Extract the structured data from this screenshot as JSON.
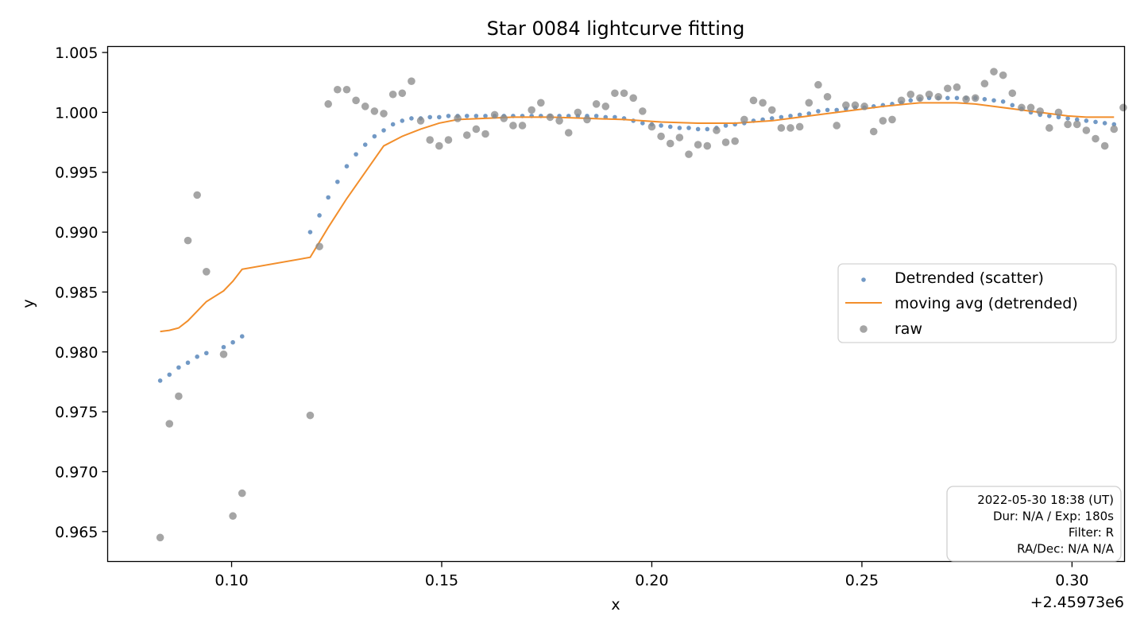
{
  "chart_data": {
    "type": "scatter",
    "title": "Star 0084 lightcurve fitting",
    "xlabel": "x",
    "ylabel": "y",
    "x_offset_label": "+2.45973e6",
    "xlim": [
      0.0705,
      0.3125
    ],
    "ylim": [
      0.9625,
      1.0055
    ],
    "x_ticks": [
      {
        "value": 0.1,
        "label": "0.10"
      },
      {
        "value": 0.15,
        "label": "0.15"
      },
      {
        "value": 0.2,
        "label": "0.20"
      },
      {
        "value": 0.25,
        "label": "0.25"
      },
      {
        "value": 0.3,
        "label": "0.30"
      }
    ],
    "y_ticks": [
      {
        "value": 0.965,
        "label": "0.965"
      },
      {
        "value": 0.97,
        "label": "0.970"
      },
      {
        "value": 0.975,
        "label": "0.975"
      },
      {
        "value": 0.98,
        "label": "0.980"
      },
      {
        "value": 0.985,
        "label": "0.985"
      },
      {
        "value": 0.99,
        "label": "0.990"
      },
      {
        "value": 0.995,
        "label": "0.995"
      },
      {
        "value": 1.0,
        "label": "1.000"
      },
      {
        "value": 1.005,
        "label": "1.005"
      }
    ],
    "grid": false,
    "legend_position": "center-right",
    "series": [
      {
        "name": "Detrended (scatter)",
        "kind": "scatter",
        "color": "#4f7fb6",
        "points": [
          [
            0.083,
            0.9776
          ],
          [
            0.0852,
            0.9781
          ],
          [
            0.0874,
            0.9787
          ],
          [
            0.0896,
            0.9791
          ],
          [
            0.0918,
            0.9796
          ],
          [
            0.094,
            0.9799
          ],
          [
            0.0981,
            0.9804
          ],
          [
            0.1003,
            0.9808
          ],
          [
            0.1025,
            0.9813
          ],
          [
            0.1187,
            0.99
          ],
          [
            0.1209,
            0.9914
          ],
          [
            0.123,
            0.9929
          ],
          [
            0.1252,
            0.9942
          ],
          [
            0.1274,
            0.9955
          ],
          [
            0.1296,
            0.9965
          ],
          [
            0.1318,
            0.9973
          ],
          [
            0.134,
            0.998
          ],
          [
            0.1362,
            0.9985
          ],
          [
            0.1384,
            0.999
          ],
          [
            0.1406,
            0.9993
          ],
          [
            0.1428,
            0.9995
          ],
          [
            0.145,
            0.9995
          ],
          [
            0.1472,
            0.9996
          ],
          [
            0.1494,
            0.9996
          ],
          [
            0.1516,
            0.9997
          ],
          [
            0.1538,
            0.9997
          ],
          [
            0.156,
            0.9997
          ],
          [
            0.1582,
            0.9997
          ],
          [
            0.1604,
            0.9997
          ],
          [
            0.1626,
            0.9997
          ],
          [
            0.1648,
            0.9997
          ],
          [
            0.167,
            0.9997
          ],
          [
            0.1692,
            0.9997
          ],
          [
            0.1714,
            0.9997
          ],
          [
            0.1736,
            0.9997
          ],
          [
            0.1758,
            0.9997
          ],
          [
            0.178,
            0.9997
          ],
          [
            0.1802,
            0.9997
          ],
          [
            0.1824,
            0.9997
          ],
          [
            0.1846,
            0.9997
          ],
          [
            0.1868,
            0.9997
          ],
          [
            0.189,
            0.9996
          ],
          [
            0.1912,
            0.9996
          ],
          [
            0.1934,
            0.9995
          ],
          [
            0.1956,
            0.9993
          ],
          [
            0.1978,
            0.9991
          ],
          [
            0.2,
            0.999
          ],
          [
            0.2022,
            0.9989
          ],
          [
            0.2044,
            0.9988
          ],
          [
            0.2066,
            0.9987
          ],
          [
            0.2088,
            0.9987
          ],
          [
            0.211,
            0.9986
          ],
          [
            0.2132,
            0.9986
          ],
          [
            0.2154,
            0.9987
          ],
          [
            0.2176,
            0.9989
          ],
          [
            0.2198,
            0.999
          ],
          [
            0.222,
            0.9991
          ],
          [
            0.2242,
            0.9993
          ],
          [
            0.2264,
            0.9994
          ],
          [
            0.2286,
            0.9995
          ],
          [
            0.2308,
            0.9996
          ],
          [
            0.233,
            0.9997
          ],
          [
            0.2352,
            0.9998
          ],
          [
            0.2374,
            0.9999
          ],
          [
            0.2396,
            1.0001
          ],
          [
            0.2418,
            1.0002
          ],
          [
            0.244,
            1.0002
          ],
          [
            0.2462,
            1.0003
          ],
          [
            0.2484,
            1.0004
          ],
          [
            0.2506,
            1.0004
          ],
          [
            0.2528,
            1.0005
          ],
          [
            0.255,
            1.0006
          ],
          [
            0.2572,
            1.0007
          ],
          [
            0.2594,
            1.0008
          ],
          [
            0.2616,
            1.001
          ],
          [
            0.2638,
            1.0011
          ],
          [
            0.266,
            1.0012
          ],
          [
            0.2682,
            1.0012
          ],
          [
            0.2704,
            1.0012
          ],
          [
            0.2726,
            1.0012
          ],
          [
            0.2748,
            1.0012
          ],
          [
            0.277,
            1.0012
          ],
          [
            0.2792,
            1.0011
          ],
          [
            0.2814,
            1.001
          ],
          [
            0.2836,
            1.0009
          ],
          [
            0.2858,
            1.0006
          ],
          [
            0.288,
            1.0003
          ],
          [
            0.2902,
            1.0
          ],
          [
            0.2924,
            0.9998
          ],
          [
            0.2946,
            0.9997
          ],
          [
            0.2968,
            0.9996
          ],
          [
            0.299,
            0.9995
          ],
          [
            0.3012,
            0.9994
          ],
          [
            0.3034,
            0.9993
          ],
          [
            0.3056,
            0.9992
          ],
          [
            0.3078,
            0.9991
          ],
          [
            0.31,
            0.999
          ]
        ]
      },
      {
        "name": "moving avg (detrended)",
        "kind": "line",
        "color": "#f28e2b",
        "points": [
          [
            0.083,
            0.9817
          ],
          [
            0.0852,
            0.9818
          ],
          [
            0.0874,
            0.982
          ],
          [
            0.0896,
            0.9826
          ],
          [
            0.0918,
            0.9834
          ],
          [
            0.094,
            0.9842
          ],
          [
            0.0981,
            0.9851
          ],
          [
            0.1003,
            0.9859
          ],
          [
            0.1025,
            0.9869
          ],
          [
            0.1187,
            0.9879
          ],
          [
            0.123,
            0.9904
          ],
          [
            0.1274,
            0.9928
          ],
          [
            0.1318,
            0.995
          ],
          [
            0.1362,
            0.9972
          ],
          [
            0.1406,
            0.998
          ],
          [
            0.145,
            0.9986
          ],
          [
            0.1494,
            0.9991
          ],
          [
            0.1538,
            0.9994
          ],
          [
            0.1604,
            0.9995
          ],
          [
            0.167,
            0.9996
          ],
          [
            0.1758,
            0.9996
          ],
          [
            0.1846,
            0.9995
          ],
          [
            0.1934,
            0.9994
          ],
          [
            0.2022,
            0.9992
          ],
          [
            0.211,
            0.9991
          ],
          [
            0.2198,
            0.9991
          ],
          [
            0.2286,
            0.9993
          ],
          [
            0.2374,
            0.9997
          ],
          [
            0.2462,
            1.0001
          ],
          [
            0.255,
            1.0005
          ],
          [
            0.2638,
            1.0008
          ],
          [
            0.2682,
            1.0008
          ],
          [
            0.2726,
            1.0008
          ],
          [
            0.277,
            1.0007
          ],
          [
            0.2814,
            1.0005
          ],
          [
            0.2858,
            1.0003
          ],
          [
            0.2902,
            1.0001
          ],
          [
            0.2946,
            0.9999
          ],
          [
            0.299,
            0.9997
          ],
          [
            0.3034,
            0.9996
          ],
          [
            0.31,
            0.9996
          ]
        ]
      },
      {
        "name": "raw",
        "kind": "scatter",
        "color": "#8c8c8c",
        "points": [
          [
            0.083,
            0.9645
          ],
          [
            0.0852,
            0.974
          ],
          [
            0.0874,
            0.9763
          ],
          [
            0.0896,
            0.9893
          ],
          [
            0.0918,
            0.9931
          ],
          [
            0.094,
            0.9867
          ],
          [
            0.0981,
            0.9798
          ],
          [
            0.1003,
            0.9663
          ],
          [
            0.1025,
            0.9682
          ],
          [
            0.1187,
            0.9747
          ],
          [
            0.1209,
            0.9888
          ],
          [
            0.123,
            1.0007
          ],
          [
            0.1252,
            1.0019
          ],
          [
            0.1274,
            1.0019
          ],
          [
            0.1296,
            1.001
          ],
          [
            0.1318,
            1.0005
          ],
          [
            0.134,
            1.0001
          ],
          [
            0.1362,
            0.9999
          ],
          [
            0.1384,
            1.0015
          ],
          [
            0.1406,
            1.0016
          ],
          [
            0.1428,
            1.0026
          ],
          [
            0.145,
            0.9993
          ],
          [
            0.1472,
            0.9977
          ],
          [
            0.1494,
            0.9972
          ],
          [
            0.1516,
            0.9977
          ],
          [
            0.1538,
            0.9995
          ],
          [
            0.156,
            0.9981
          ],
          [
            0.1582,
            0.9986
          ],
          [
            0.1604,
            0.9982
          ],
          [
            0.1626,
            0.9998
          ],
          [
            0.1648,
            0.9995
          ],
          [
            0.167,
            0.9989
          ],
          [
            0.1692,
            0.9989
          ],
          [
            0.1714,
            1.0002
          ],
          [
            0.1736,
            1.0008
          ],
          [
            0.1758,
            0.9996
          ],
          [
            0.178,
            0.9993
          ],
          [
            0.1802,
            0.9983
          ],
          [
            0.1824,
            1.0
          ],
          [
            0.1846,
            0.9994
          ],
          [
            0.1868,
            1.0007
          ],
          [
            0.189,
            1.0005
          ],
          [
            0.1912,
            1.0016
          ],
          [
            0.1934,
            1.0016
          ],
          [
            0.1956,
            1.0012
          ],
          [
            0.1978,
            1.0001
          ],
          [
            0.2,
            0.9988
          ],
          [
            0.2022,
            0.998
          ],
          [
            0.2044,
            0.9974
          ],
          [
            0.2066,
            0.9979
          ],
          [
            0.2088,
            0.9965
          ],
          [
            0.211,
            0.9973
          ],
          [
            0.2132,
            0.9972
          ],
          [
            0.2154,
            0.9985
          ],
          [
            0.2176,
            0.9975
          ],
          [
            0.2198,
            0.9976
          ],
          [
            0.222,
            0.9994
          ],
          [
            0.2242,
            1.001
          ],
          [
            0.2264,
            1.0008
          ],
          [
            0.2286,
            1.0002
          ],
          [
            0.2308,
            0.9987
          ],
          [
            0.233,
            0.9987
          ],
          [
            0.2352,
            0.9988
          ],
          [
            0.2374,
            1.0008
          ],
          [
            0.2396,
            1.0023
          ],
          [
            0.2418,
            1.0013
          ],
          [
            0.244,
            0.9989
          ],
          [
            0.2462,
            1.0006
          ],
          [
            0.2484,
            1.0006
          ],
          [
            0.2506,
            1.0005
          ],
          [
            0.2528,
            0.9984
          ],
          [
            0.255,
            0.9993
          ],
          [
            0.2572,
            0.9994
          ],
          [
            0.2594,
            1.001
          ],
          [
            0.2616,
            1.0015
          ],
          [
            0.2638,
            1.0012
          ],
          [
            0.266,
            1.0015
          ],
          [
            0.2682,
            1.0013
          ],
          [
            0.2704,
            1.002
          ],
          [
            0.2726,
            1.0021
          ],
          [
            0.2748,
            1.0011
          ],
          [
            0.277,
            1.0012
          ],
          [
            0.2792,
            1.0024
          ],
          [
            0.2814,
            1.0034
          ],
          [
            0.2836,
            1.0031
          ],
          [
            0.2858,
            1.0016
          ],
          [
            0.288,
            1.0004
          ],
          [
            0.2902,
            1.0004
          ],
          [
            0.2924,
            1.0001
          ],
          [
            0.2946,
            0.9987
          ],
          [
            0.2968,
            1.0
          ],
          [
            0.299,
            0.999
          ],
          [
            0.3012,
            0.999
          ],
          [
            0.3034,
            0.9985
          ],
          [
            0.3056,
            0.9978
          ],
          [
            0.3078,
            0.9972
          ],
          [
            0.31,
            0.9986
          ],
          [
            0.3122,
            1.0004
          ],
          [
            0.3144,
            1.0032
          ]
        ]
      }
    ],
    "annotation_lines": [
      "2022-05-30 18:38 (UT)",
      "Dur: N/A / Exp: 180s",
      "Filter: R",
      "RA/Dec: N/A N/A"
    ]
  }
}
